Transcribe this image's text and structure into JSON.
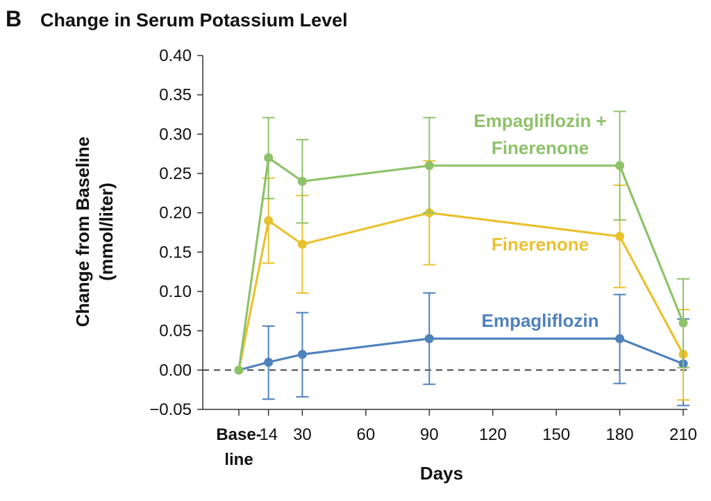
{
  "panel_letter": "B",
  "colors": {
    "empa_fine": "#8dc268",
    "finerenone": "#e9c12e",
    "empagliflozin": "#4f81bd",
    "axis": "#333333",
    "baseline_dash": "#222222"
  },
  "chart_data": {
    "type": "line",
    "title": "Change in Serum Potassium Level",
    "xlabel": "Days",
    "ylabel_line1": "Change from Baseline",
    "ylabel_line2": "(mmol/liter)",
    "ylim": [
      -0.05,
      0.4
    ],
    "y_ticks": [
      "0.40",
      "0.35",
      "0.30",
      "0.25",
      "0.20",
      "0.15",
      "0.10",
      "0.05",
      "0.00",
      "−0.05"
    ],
    "x_tick_values": [
      0,
      14,
      30,
      60,
      90,
      120,
      150,
      180,
      210
    ],
    "x_tick_labels": [
      "",
      "14",
      "30",
      "60",
      "90",
      "120",
      "150",
      "180",
      "210"
    ],
    "x_baseline_label_line1": "Base-",
    "x_baseline_label_line2": "line",
    "reference_line": 0,
    "grid": false,
    "series": [
      {
        "name": "Empagliflozin + Finerenone",
        "label_line1": "Empagliflozin +",
        "label_line2": "Finerenone",
        "x": [
          0,
          14,
          30,
          90,
          180,
          210
        ],
        "y": [
          0.0,
          0.27,
          0.24,
          0.26,
          0.26,
          0.06
        ],
        "lower": [
          null,
          0.218,
          0.187,
          0.2,
          0.191,
          0.003
        ],
        "upper": [
          null,
          0.321,
          0.293,
          0.321,
          0.329,
          0.116
        ]
      },
      {
        "name": "Finerenone",
        "label_line1": "Finerenone",
        "label_line2": "",
        "x": [
          0,
          14,
          30,
          90,
          180,
          210
        ],
        "y": [
          0.0,
          0.19,
          0.16,
          0.2,
          0.17,
          0.02
        ],
        "lower": [
          null,
          0.136,
          0.098,
          0.134,
          0.105,
          -0.038
        ],
        "upper": [
          null,
          0.244,
          0.222,
          0.266,
          0.235,
          0.077
        ]
      },
      {
        "name": "Empagliflozin",
        "label_line1": "Empagliflozin",
        "label_line2": "",
        "x": [
          0,
          14,
          30,
          90,
          180,
          210
        ],
        "y": [
          0.0,
          0.01,
          0.02,
          0.04,
          0.04,
          0.008
        ],
        "lower": [
          null,
          -0.037,
          -0.034,
          -0.018,
          -0.017,
          -0.045
        ],
        "upper": [
          null,
          0.056,
          0.073,
          0.098,
          0.096,
          0.065
        ]
      }
    ]
  }
}
